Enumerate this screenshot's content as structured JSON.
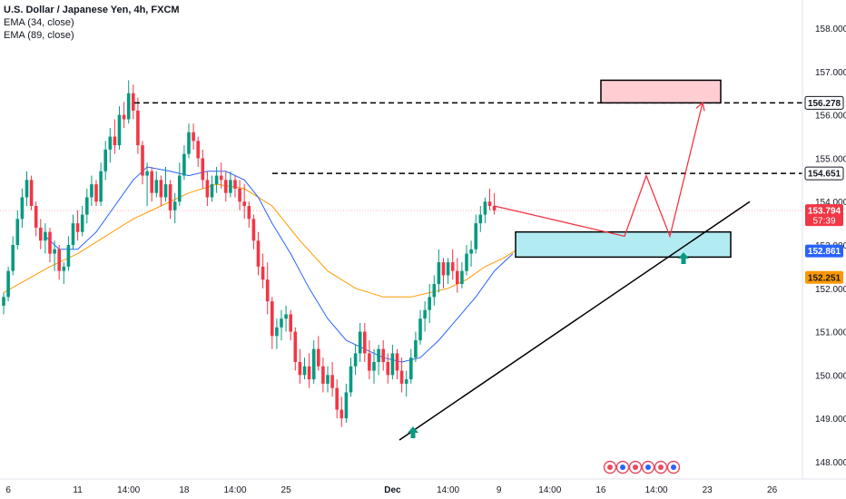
{
  "legend": {
    "title": "U.S. Dollar / Japanese Yen, 4h, FXCM",
    "ema1": "EMA (34, close)",
    "ema2": "EMA (89, close)"
  },
  "chart_data": {
    "type": "candlestick",
    "title": "U.S. Dollar / Japanese Yen, 4h, FXCM",
    "ylim": [
      147.6,
      158.4
    ],
    "y_ticks": [
      "158.000",
      "157.000",
      "156.000",
      "155.000",
      "154.000",
      "153.000",
      "152.000",
      "151.000",
      "150.000",
      "149.000",
      "148.000"
    ],
    "y_tick_values": [
      158,
      157,
      156,
      155,
      154,
      153,
      152,
      151,
      150,
      149,
      148
    ],
    "x_ticks": [
      {
        "label": "6",
        "i": 1
      },
      {
        "label": "11",
        "i": 16
      },
      {
        "label": "14:00",
        "i": 27
      },
      {
        "label": "18",
        "i": 39
      },
      {
        "label": "14:00",
        "i": 50
      },
      {
        "label": "25",
        "i": 61
      },
      {
        "label": "Dec",
        "i": 84,
        "bold": true
      },
      {
        "label": "14:00",
        "i": 96
      },
      {
        "label": "9",
        "i": 107
      },
      {
        "label": "14:00",
        "i": 118
      },
      {
        "label": "16",
        "i": 129
      },
      {
        "label": "14:00",
        "i": 141
      },
      {
        "label": "23",
        "i": 152
      },
      {
        "label": "26",
        "i": 166
      }
    ],
    "price_labels": [
      {
        "text": "156.278",
        "value": 156.278,
        "bg": "#ffffff",
        "fg": "#131722",
        "border": "#131722"
      },
      {
        "text": "154.651",
        "value": 154.651,
        "bg": "#ffffff",
        "fg": "#131722",
        "border": "#131722"
      },
      {
        "text": "153.794",
        "sub": "57:39",
        "value": 153.794,
        "bg": "#f23645",
        "fg": "#ffffff"
      },
      {
        "text": "152.861",
        "value": 152.861,
        "bg": "#2962ff",
        "fg": "#ffffff"
      },
      {
        "text": "152.251",
        "value": 152.251,
        "bg": "#ff9800",
        "fg": "#131722"
      }
    ],
    "candles": [
      [
        151.6,
        151.9,
        151.4,
        151.8
      ],
      [
        151.8,
        152.5,
        151.7,
        152.4
      ],
      [
        152.4,
        153.2,
        152.3,
        153.0
      ],
      [
        153.0,
        153.8,
        152.9,
        153.6
      ],
      [
        153.6,
        154.3,
        153.4,
        154.1
      ],
      [
        154.1,
        154.7,
        153.9,
        154.5
      ],
      [
        154.5,
        154.6,
        153.8,
        153.9
      ],
      [
        153.9,
        154.0,
        153.2,
        153.4
      ],
      [
        153.4,
        153.6,
        152.9,
        153.1
      ],
      [
        153.1,
        153.5,
        152.8,
        153.3
      ],
      [
        153.3,
        153.4,
        152.6,
        152.8
      ],
      [
        152.8,
        153.1,
        152.4,
        152.9
      ],
      [
        152.9,
        153.0,
        152.2,
        152.4
      ],
      [
        152.4,
        152.6,
        152.1,
        152.5
      ],
      [
        152.5,
        153.2,
        152.4,
        153.0
      ],
      [
        153.0,
        153.7,
        152.9,
        153.5
      ],
      [
        153.5,
        153.8,
        153.1,
        153.3
      ],
      [
        153.3,
        153.9,
        153.2,
        153.7
      ],
      [
        153.7,
        154.3,
        153.5,
        154.1
      ],
      [
        154.1,
        154.6,
        153.9,
        154.4
      ],
      [
        154.4,
        154.5,
        153.9,
        154.0
      ],
      [
        154.0,
        154.9,
        153.9,
        154.7
      ],
      [
        154.7,
        155.4,
        154.5,
        155.2
      ],
      [
        155.2,
        155.7,
        154.9,
        155.5
      ],
      [
        155.5,
        155.9,
        155.1,
        155.3
      ],
      [
        155.3,
        156.2,
        155.2,
        156.0
      ],
      [
        156.0,
        156.3,
        155.7,
        155.9
      ],
      [
        155.9,
        156.8,
        155.8,
        156.5
      ],
      [
        156.5,
        156.7,
        155.9,
        156.1
      ],
      [
        156.1,
        156.4,
        155.1,
        155.3
      ],
      [
        155.3,
        155.4,
        154.4,
        154.6
      ],
      [
        154.6,
        154.9,
        153.9,
        154.7
      ],
      [
        154.7,
        154.8,
        154.0,
        154.2
      ],
      [
        154.2,
        154.7,
        154.1,
        154.5
      ],
      [
        154.5,
        154.6,
        153.9,
        154.1
      ],
      [
        154.1,
        154.8,
        154.0,
        154.4
      ],
      [
        154.4,
        154.5,
        153.6,
        153.8
      ],
      [
        153.8,
        154.2,
        153.5,
        154.0
      ],
      [
        154.0,
        154.9,
        153.9,
        154.6
      ],
      [
        154.6,
        155.3,
        154.5,
        155.1
      ],
      [
        155.1,
        155.8,
        155.0,
        155.6
      ],
      [
        155.6,
        155.8,
        155.2,
        155.4
      ],
      [
        155.4,
        155.5,
        154.8,
        155.0
      ],
      [
        155.0,
        155.2,
        154.3,
        154.5
      ],
      [
        154.5,
        154.7,
        153.9,
        154.1
      ],
      [
        154.1,
        154.6,
        154.0,
        154.4
      ],
      [
        154.4,
        154.8,
        154.2,
        154.6
      ],
      [
        154.6,
        154.9,
        154.3,
        154.5
      ],
      [
        154.5,
        154.7,
        154.0,
        154.2
      ],
      [
        154.2,
        154.7,
        154.1,
        154.5
      ],
      [
        154.5,
        154.6,
        154.1,
        154.3
      ],
      [
        154.3,
        154.5,
        153.8,
        154.0
      ],
      [
        154.0,
        154.4,
        153.6,
        153.9
      ],
      [
        153.9,
        154.0,
        153.4,
        153.6
      ],
      [
        153.6,
        153.7,
        152.9,
        153.1
      ],
      [
        153.1,
        153.3,
        152.3,
        152.5
      ],
      [
        152.5,
        152.8,
        152.0,
        152.2
      ],
      [
        152.2,
        152.6,
        151.4,
        151.7
      ],
      [
        151.7,
        151.8,
        150.6,
        150.9
      ],
      [
        150.9,
        151.3,
        150.6,
        151.1
      ],
      [
        151.1,
        151.5,
        150.8,
        151.3
      ],
      [
        151.3,
        151.6,
        151.0,
        151.4
      ],
      [
        151.4,
        151.5,
        150.8,
        151.0
      ],
      [
        151.0,
        151.1,
        150.1,
        150.3
      ],
      [
        150.3,
        150.6,
        149.8,
        150.0
      ],
      [
        150.0,
        150.4,
        149.9,
        150.2
      ],
      [
        150.2,
        150.5,
        149.7,
        149.9
      ],
      [
        149.9,
        150.8,
        149.8,
        150.6
      ],
      [
        150.6,
        150.9,
        150.1,
        150.2
      ],
      [
        150.2,
        150.4,
        149.6,
        149.8
      ],
      [
        149.8,
        150.2,
        149.6,
        150.0
      ],
      [
        150.0,
        150.3,
        149.5,
        149.7
      ],
      [
        149.7,
        149.9,
        149.0,
        149.2
      ],
      [
        149.2,
        149.5,
        148.8,
        149.0
      ],
      [
        149.0,
        149.8,
        148.9,
        149.6
      ],
      [
        149.6,
        150.4,
        149.5,
        150.2
      ],
      [
        150.2,
        150.7,
        150.0,
        150.5
      ],
      [
        150.5,
        151.2,
        150.3,
        151.0
      ],
      [
        151.0,
        151.2,
        150.3,
        150.5
      ],
      [
        150.5,
        150.8,
        149.9,
        150.1
      ],
      [
        150.1,
        150.6,
        149.8,
        150.3
      ],
      [
        150.3,
        150.7,
        150.0,
        150.6
      ],
      [
        150.6,
        150.8,
        150.1,
        150.3
      ],
      [
        150.3,
        150.5,
        149.8,
        150.0
      ],
      [
        150.0,
        150.7,
        149.9,
        150.5
      ],
      [
        150.5,
        150.6,
        149.9,
        150.1
      ],
      [
        150.1,
        150.4,
        149.6,
        149.8
      ],
      [
        149.8,
        150.1,
        149.5,
        149.9
      ],
      [
        149.9,
        150.6,
        149.8,
        150.4
      ],
      [
        150.4,
        151.0,
        150.3,
        150.8
      ],
      [
        150.8,
        151.5,
        150.7,
        151.3
      ],
      [
        151.3,
        151.7,
        151.0,
        151.5
      ],
      [
        151.5,
        152.1,
        151.2,
        151.8
      ],
      [
        151.8,
        152.3,
        151.6,
        152.1
      ],
      [
        152.1,
        152.9,
        151.9,
        152.6
      ],
      [
        152.6,
        152.7,
        152.0,
        152.3
      ],
      [
        152.3,
        152.7,
        152.1,
        152.6
      ],
      [
        152.6,
        152.9,
        152.2,
        152.4
      ],
      [
        152.4,
        152.7,
        151.9,
        152.1
      ],
      [
        152.1,
        152.6,
        152.0,
        152.4
      ],
      [
        152.4,
        153.0,
        152.3,
        152.8
      ],
      [
        152.8,
        153.1,
        152.5,
        152.9
      ],
      [
        152.9,
        153.7,
        152.8,
        153.5
      ],
      [
        153.5,
        153.9,
        153.3,
        153.7
      ],
      [
        153.7,
        154.1,
        153.5,
        154.0
      ],
      [
        154.0,
        154.3,
        153.8,
        153.9
      ],
      [
        153.9,
        154.2,
        153.7,
        153.8
      ]
    ],
    "ema34_path": [
      [
        9,
        153.2
      ],
      [
        12,
        152.9
      ],
      [
        16,
        152.9
      ],
      [
        20,
        153.3
      ],
      [
        24,
        153.9
      ],
      [
        28,
        154.5
      ],
      [
        31,
        154.8
      ],
      [
        36,
        154.7
      ],
      [
        40,
        154.6
      ],
      [
        44,
        154.7
      ],
      [
        48,
        154.7
      ],
      [
        52,
        154.5
      ],
      [
        55,
        154.1
      ],
      [
        58,
        153.5
      ],
      [
        62,
        152.8
      ],
      [
        66,
        152.0
      ],
      [
        70,
        151.3
      ],
      [
        74,
        150.8
      ],
      [
        78,
        150.6
      ],
      [
        82,
        150.4
      ],
      [
        86,
        150.3
      ],
      [
        90,
        150.4
      ],
      [
        94,
        150.8
      ],
      [
        98,
        151.3
      ],
      [
        102,
        151.8
      ],
      [
        106,
        152.4
      ],
      [
        110,
        152.8
      ]
    ],
    "ema89_path": [
      [
        0,
        151.9
      ],
      [
        5,
        152.2
      ],
      [
        10,
        152.5
      ],
      [
        16,
        152.8
      ],
      [
        22,
        153.2
      ],
      [
        28,
        153.6
      ],
      [
        34,
        153.9
      ],
      [
        40,
        154.2
      ],
      [
        46,
        154.4
      ],
      [
        52,
        154.3
      ],
      [
        58,
        153.9
      ],
      [
        64,
        153.1
      ],
      [
        70,
        152.4
      ],
      [
        76,
        152.0
      ],
      [
        82,
        151.8
      ],
      [
        88,
        151.8
      ],
      [
        92,
        151.9
      ],
      [
        96,
        152.0
      ],
      [
        100,
        152.2
      ],
      [
        104,
        152.5
      ],
      [
        108,
        152.7
      ],
      [
        111,
        152.9
      ]
    ],
    "annotations": {
      "resistance_1": 156.278,
      "resistance_2": 154.651,
      "target_zone": [
        156.278,
        156.8
      ],
      "support_zone": [
        152.72,
        153.3
      ],
      "trendline": [
        [
          148.5,
          73
        ],
        [
          154.0,
          137
        ]
      ],
      "projection": [
        [
          153.9,
          0
        ],
        [
          153.2,
          1
        ],
        [
          154.6,
          2
        ],
        [
          153.2,
          3
        ],
        [
          156.278,
          4
        ]
      ]
    }
  }
}
